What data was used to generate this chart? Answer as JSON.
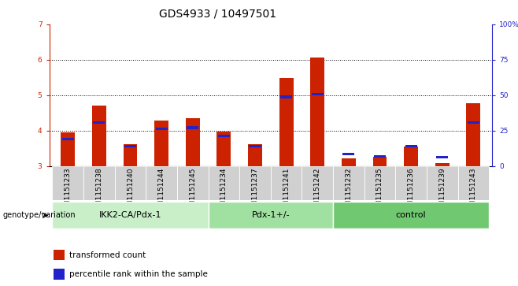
{
  "title": "GDS4933 / 10497501",
  "samples": [
    "GSM1151233",
    "GSM1151238",
    "GSM1151240",
    "GSM1151244",
    "GSM1151245",
    "GSM1151234",
    "GSM1151237",
    "GSM1151241",
    "GSM1151242",
    "GSM1151232",
    "GSM1151235",
    "GSM1151236",
    "GSM1151239",
    "GSM1151243"
  ],
  "red_values": [
    3.95,
    4.7,
    3.62,
    4.28,
    4.35,
    3.97,
    3.62,
    5.48,
    6.07,
    3.22,
    3.25,
    3.55,
    3.08,
    4.78
  ],
  "blue_values": [
    3.75,
    4.22,
    3.56,
    4.05,
    4.08,
    3.85,
    3.56,
    4.95,
    5.02,
    3.34,
    3.26,
    3.56,
    3.25,
    4.22
  ],
  "groups": [
    {
      "label": "IKK2-CA/Pdx-1",
      "start": 0,
      "end": 5
    },
    {
      "label": "Pdx-1+/-",
      "start": 5,
      "end": 9
    },
    {
      "label": "control",
      "start": 9,
      "end": 14
    }
  ],
  "group_colors": [
    "#c8efc8",
    "#a0e0a0",
    "#70c870"
  ],
  "y_min": 3.0,
  "y_max": 7.0,
  "y_ticks": [
    3,
    4,
    5,
    6,
    7
  ],
  "y_right_ticks": [
    0,
    25,
    50,
    75,
    100
  ],
  "y_right_tick_labels": [
    "0",
    "25",
    "50",
    "75",
    "100%"
  ],
  "bar_color_red": "#cc2200",
  "bar_color_blue": "#2222cc",
  "bar_width": 0.45,
  "legend_red": "transformed count",
  "legend_blue": "percentile rank within the sample",
  "genotype_label": "genotype/variation",
  "xlabel_color": "#cc2200",
  "right_axis_color": "#2222cc",
  "title_fontsize": 10,
  "tick_fontsize": 6.5,
  "group_fontsize": 8,
  "legend_fontsize": 7.5
}
